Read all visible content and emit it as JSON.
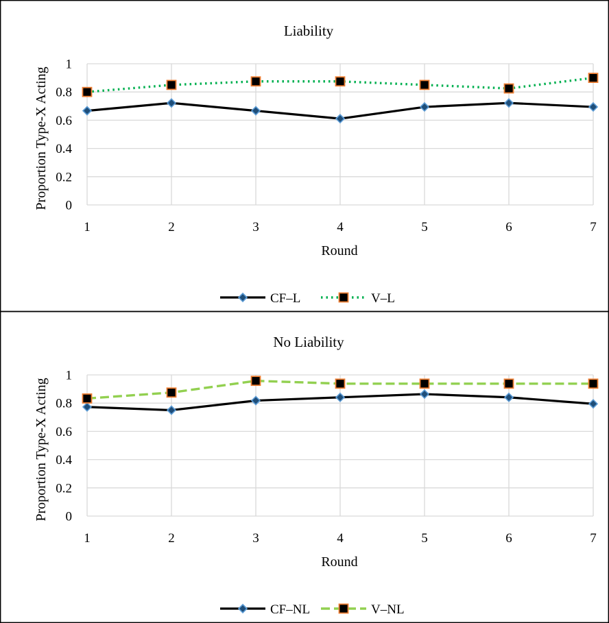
{
  "chart_data": [
    {
      "type": "line",
      "title": "Liability",
      "xlabel": "Round",
      "ylabel": "Proportion Type-X Acting",
      "x": [
        1,
        2,
        3,
        4,
        5,
        6,
        7
      ],
      "yticks": [
        "0",
        "0.2",
        "0.4",
        "0.6",
        "0.8",
        "1"
      ],
      "ylim": [
        0,
        1
      ],
      "grid": true,
      "legend_position": "bottom",
      "series": [
        {
          "name": "CF–L",
          "values": [
            0.667,
            0.722,
            0.667,
            0.611,
            0.694,
            0.722,
            0.694
          ],
          "color": "#000000",
          "line_style": "solid",
          "marker": "diamond",
          "marker_fill": "#1f4e79",
          "marker_edge": "#5b9bd5"
        },
        {
          "name": "V–L",
          "values": [
            0.8,
            0.85,
            0.875,
            0.875,
            0.85,
            0.825,
            0.9
          ],
          "color": "#00b050",
          "line_style": "dotted",
          "marker": "square",
          "marker_fill": "#000000",
          "marker_edge": "#ed7d31"
        }
      ]
    },
    {
      "type": "line",
      "title": "No Liability",
      "xlabel": "Round",
      "ylabel": "Proportion Type-X Acting",
      "x": [
        1,
        2,
        3,
        4,
        5,
        6,
        7
      ],
      "yticks": [
        "0",
        "0.2",
        "0.4",
        "0.6",
        "0.8",
        "1"
      ],
      "ylim": [
        0,
        1
      ],
      "grid": true,
      "legend_position": "bottom",
      "series": [
        {
          "name": "CF–NL",
          "values": [
            0.773,
            0.75,
            0.818,
            0.841,
            0.864,
            0.841,
            0.795
          ],
          "color": "#000000",
          "line_style": "solid",
          "marker": "diamond",
          "marker_fill": "#1f4e79",
          "marker_edge": "#5b9bd5"
        },
        {
          "name": "V–NL",
          "values": [
            0.833,
            0.875,
            0.958,
            0.938,
            0.938,
            0.938,
            0.938
          ],
          "color": "#92d050",
          "line_style": "dashed",
          "marker": "square",
          "marker_fill": "#000000",
          "marker_edge": "#ed7d31"
        }
      ]
    }
  ]
}
